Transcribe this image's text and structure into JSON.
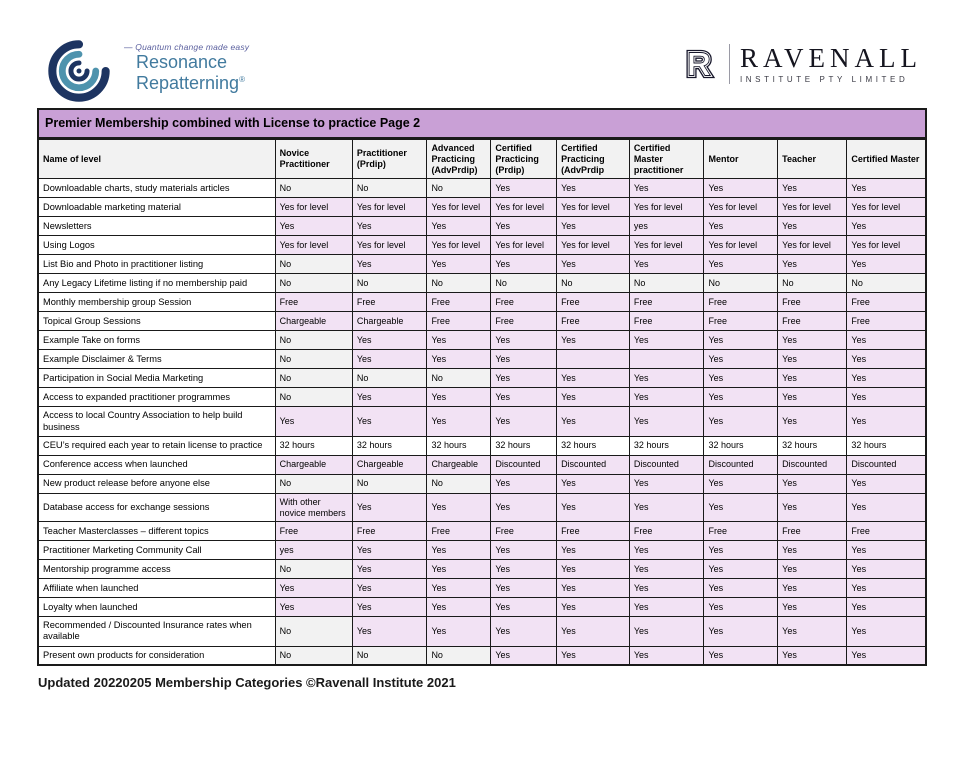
{
  "branding": {
    "left_logo": {
      "tagline": "Quantum change made easy",
      "line1": "Resonance",
      "line2": "Repatterning",
      "registered_mark": "®",
      "name_color": "#417a9e",
      "tagline_color": "#5a5f9e",
      "spiral_navy": "#1d3461",
      "spiral_teal": "#4e93ad"
    },
    "right_logo": {
      "monogram": "R",
      "name": "RAVENALL",
      "subtitle": "INSTITUTE PTY LIMITED"
    }
  },
  "table": {
    "title": "Premier Membership combined with License to practice Page 2",
    "columns": [
      "Name of level",
      "Novice Practitioner",
      "Practitioner (Prdip)",
      "Advanced Practicing (AdvPrdip)",
      "Certified Practicing (Prdip)",
      "Certified Practicing (AdvPrdip",
      "Certified Master practitioner",
      "Mentor",
      "Teacher",
      "Certified Master"
    ],
    "rows": [
      {
        "label": "Downloadable charts, study materials articles",
        "values": [
          "No",
          "No",
          "No",
          "Yes",
          "Yes",
          "Yes",
          "Yes",
          "Yes",
          "Yes"
        ]
      },
      {
        "label": "Downloadable marketing material",
        "values": [
          "Yes for level",
          "Yes for level",
          "Yes for level",
          "Yes for level",
          "Yes for level",
          "Yes for level",
          "Yes for level",
          "Yes for level",
          "Yes for level"
        ]
      },
      {
        "label": "Newsletters",
        "values": [
          "Yes",
          "Yes",
          "Yes",
          "Yes",
          "Yes",
          "yes",
          "Yes",
          "Yes",
          "Yes"
        ]
      },
      {
        "label": "Using Logos",
        "values": [
          "Yes for level",
          "Yes for level",
          "Yes for level",
          "Yes for level",
          "Yes for level",
          "Yes for level",
          "Yes for level",
          "Yes for level",
          "Yes for level"
        ]
      },
      {
        "label": "List Bio and Photo in practitioner listing",
        "values": [
          "No",
          "Yes",
          "Yes",
          "Yes",
          "Yes",
          "Yes",
          "Yes",
          "Yes",
          "Yes"
        ]
      },
      {
        "label": "Any Legacy Lifetime listing if no membership paid",
        "values": [
          "No",
          "No",
          "No",
          "No",
          "No",
          "No",
          "No",
          "No",
          "No"
        ]
      },
      {
        "label": "Monthly membership group Session",
        "values": [
          "Free",
          "Free",
          "Free",
          "Free",
          "Free",
          "Free",
          "Free",
          "Free",
          "Free"
        ]
      },
      {
        "label": "Topical Group Sessions",
        "values": [
          "Chargeable",
          "Chargeable",
          "Free",
          "Free",
          "Free",
          "Free",
          "Free",
          "Free",
          "Free"
        ]
      },
      {
        "label": "Example Take on forms",
        "values": [
          "No",
          "Yes",
          "Yes",
          "Yes",
          "Yes",
          "Yes",
          "Yes",
          "Yes",
          "Yes"
        ]
      },
      {
        "label": "Example Disclaimer & Terms",
        "values": [
          "No",
          "Yes",
          "Yes",
          "Yes",
          "",
          "",
          "Yes",
          "Yes",
          "Yes"
        ]
      },
      {
        "label": "Participation in Social Media Marketing",
        "values": [
          "No",
          "No",
          "No",
          "Yes",
          "Yes",
          "Yes",
          "Yes",
          "Yes",
          "Yes"
        ]
      },
      {
        "label": "Access to expanded practitioner programmes",
        "values": [
          "No",
          "Yes",
          "Yes",
          "Yes",
          "Yes",
          "Yes",
          "Yes",
          "Yes",
          "Yes"
        ]
      },
      {
        "label": "Access to local Country Association to help build business",
        "values": [
          "Yes",
          "Yes",
          "Yes",
          "Yes",
          "Yes",
          "Yes",
          "Yes",
          "Yes",
          "Yes"
        ]
      },
      {
        "label": "CEU’s required each year to retain license to practice",
        "values": [
          "32 hours",
          "32 hours",
          "32 hours",
          "32 hours",
          "32 hours",
          "32 hours",
          "32 hours",
          "32 hours",
          "32 hours"
        ]
      },
      {
        "label": "Conference access when launched",
        "values": [
          "Chargeable",
          "Chargeable",
          "Chargeable",
          "Discounted",
          "Discounted",
          "Discounted",
          "Discounted",
          "Discounted",
          "Discounted"
        ]
      },
      {
        "label": "New product release before anyone else",
        "values": [
          "No",
          "No",
          "No",
          "Yes",
          "Yes",
          "Yes",
          "Yes",
          "Yes",
          "Yes"
        ]
      },
      {
        "label": "Database access for exchange sessions",
        "values": [
          "With other novice members",
          "Yes",
          "Yes",
          "Yes",
          "Yes",
          "Yes",
          "Yes",
          "Yes",
          "Yes"
        ]
      },
      {
        "label": "Teacher Masterclasses – different topics",
        "values": [
          "Free",
          "Free",
          "Free",
          "Free",
          "Free",
          "Free",
          "Free",
          "Free",
          "Free"
        ]
      },
      {
        "label": "Practitioner Marketing Community Call",
        "values": [
          "yes",
          "Yes",
          "Yes",
          "Yes",
          "Yes",
          "Yes",
          "Yes",
          "Yes",
          "Yes"
        ]
      },
      {
        "label": "Mentorship programme access",
        "values": [
          "No",
          "Yes",
          "Yes",
          "Yes",
          "Yes",
          "Yes",
          "Yes",
          "Yes",
          "Yes"
        ]
      },
      {
        "label": "Affiliate when launched",
        "values": [
          "Yes",
          "Yes",
          "Yes",
          "Yes",
          "Yes",
          "Yes",
          "Yes",
          "Yes",
          "Yes"
        ]
      },
      {
        "label": "Loyalty when launched",
        "values": [
          "Yes",
          "Yes",
          "Yes",
          "Yes",
          "Yes",
          "Yes",
          "Yes",
          "Yes",
          "Yes"
        ]
      },
      {
        "label": "Recommended / Discounted Insurance rates when available",
        "values": [
          "No",
          "Yes",
          "Yes",
          "Yes",
          "Yes",
          "Yes",
          "Yes",
          "Yes",
          "Yes"
        ]
      },
      {
        "label": "Present own products for consideration",
        "values": [
          "No",
          "No",
          "No",
          "Yes",
          "Yes",
          "Yes",
          "Yes",
          "Yes",
          "Yes"
        ]
      }
    ],
    "colors": {
      "title_bg": "#c9a0d6",
      "header_bg": "#f2f2f2",
      "positive_bg": "#f2e2f4",
      "negative_bg": "#f2f2f2",
      "neutral_bg": "#ffffff",
      "border": "#1a1a1a"
    }
  },
  "footer": {
    "text": "Updated 20220205 Membership Categories ©Ravenall Institute 2021"
  }
}
